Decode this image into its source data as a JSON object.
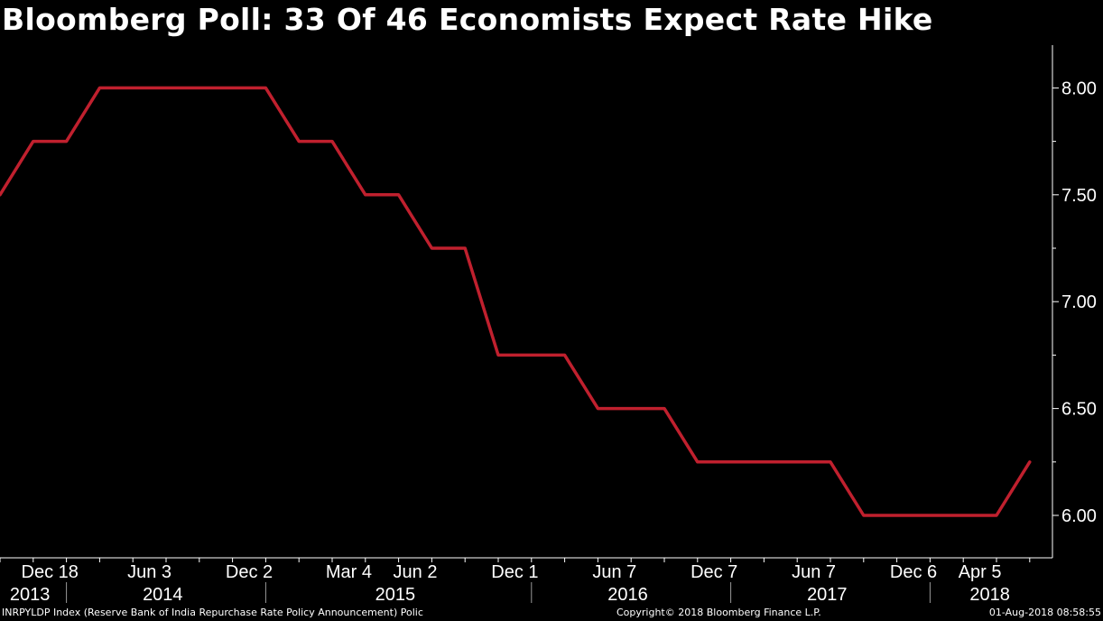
{
  "header": {
    "title": "Bloomberg Poll: 33 Of 46 Economists Expect Rate Hike"
  },
  "footer": {
    "source": "INRPYLDP Index (Reserve Bank of India Repurchase Rate Policy Announcement) Polic",
    "copyright": "Copyright© 2018 Bloomberg Finance L.P.",
    "timestamp": "01-Aug-2018 08:58:55"
  },
  "colors": {
    "background": "#000000",
    "line": "#c0202e",
    "text": "#ffffff",
    "axis": "#ffffff",
    "divider": "#9a9a9a"
  },
  "chart_data": {
    "type": "line",
    "title": "Bloomberg Poll: 33 Of 46 Economists Expect Rate Hike",
    "xlabel": "",
    "ylabel": "",
    "x_range": [
      0,
      31
    ],
    "ylim": [
      5.8,
      8.2
    ],
    "grid": false,
    "legend": "none",
    "y_ticks": [
      {
        "value": 6.0,
        "label": "6.00"
      },
      {
        "value": 6.5,
        "label": "6.50"
      },
      {
        "value": 7.0,
        "label": "7.00"
      },
      {
        "value": 7.5,
        "label": "7.50"
      },
      {
        "value": 8.0,
        "label": "8.00"
      }
    ],
    "x_ticks": [
      {
        "x": 1.5,
        "label": "Dec 18"
      },
      {
        "x": 4.5,
        "label": "Jun 3"
      },
      {
        "x": 7.5,
        "label": "Dec 2"
      },
      {
        "x": 10.5,
        "label": "Mar 4"
      },
      {
        "x": 12.5,
        "label": "Jun 2"
      },
      {
        "x": 15.5,
        "label": "Dec 1"
      },
      {
        "x": 18.5,
        "label": "Jun 7"
      },
      {
        "x": 21.5,
        "label": "Dec 7"
      },
      {
        "x": 24.5,
        "label": "Jun 7"
      },
      {
        "x": 27.5,
        "label": "Dec 6"
      },
      {
        "x": 29.5,
        "label": "Apr 5"
      }
    ],
    "year_labels": [
      {
        "x": 0.9,
        "label": "2013"
      },
      {
        "x": 4.9,
        "label": "2014"
      },
      {
        "x": 11.9,
        "label": "2015"
      },
      {
        "x": 18.9,
        "label": "2016"
      },
      {
        "x": 24.9,
        "label": "2017"
      },
      {
        "x": 29.8,
        "label": "2018"
      }
    ],
    "year_dividers": [
      2,
      8,
      16,
      22,
      28
    ],
    "series": [
      {
        "name": "INRPYLDP Index",
        "color": "#c0202e",
        "points": [
          [
            0,
            7.5
          ],
          [
            1,
            7.75
          ],
          [
            2,
            7.75
          ],
          [
            3,
            8.0
          ],
          [
            4,
            8.0
          ],
          [
            5,
            8.0
          ],
          [
            6,
            8.0
          ],
          [
            7,
            8.0
          ],
          [
            8,
            8.0
          ],
          [
            9,
            7.75
          ],
          [
            10,
            7.75
          ],
          [
            11,
            7.5
          ],
          [
            12,
            7.5
          ],
          [
            13,
            7.25
          ],
          [
            14,
            7.25
          ],
          [
            15,
            6.75
          ],
          [
            16,
            6.75
          ],
          [
            17,
            6.75
          ],
          [
            18,
            6.5
          ],
          [
            19,
            6.5
          ],
          [
            20,
            6.5
          ],
          [
            21,
            6.25
          ],
          [
            22,
            6.25
          ],
          [
            23,
            6.25
          ],
          [
            24,
            6.25
          ],
          [
            25,
            6.25
          ],
          [
            26,
            6.0
          ],
          [
            27,
            6.0
          ],
          [
            28,
            6.0
          ],
          [
            29,
            6.0
          ],
          [
            30,
            6.0
          ],
          [
            31,
            6.25
          ]
        ]
      }
    ]
  }
}
